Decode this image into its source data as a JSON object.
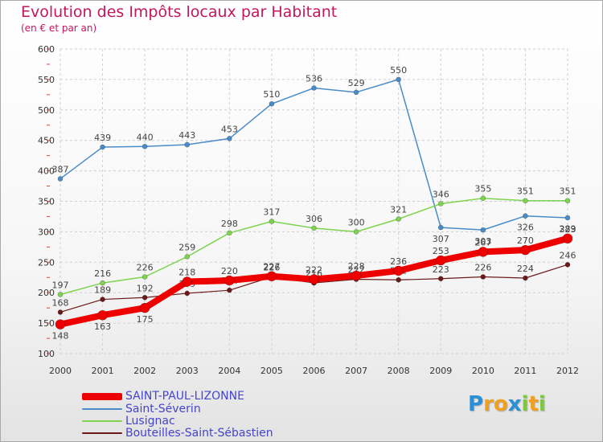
{
  "chart_data": {
    "type": "line",
    "title": "Evolution des Impôts locaux par Habitant",
    "subtitle": "(en € et par an)",
    "xlabel": "",
    "ylabel": "",
    "ylim": [
      100,
      600
    ],
    "yticks": [
      100,
      150,
      200,
      250,
      300,
      350,
      400,
      450,
      500,
      550,
      600
    ],
    "x": [
      2000,
      2001,
      2002,
      2003,
      2004,
      2005,
      2006,
      2007,
      2008,
      2009,
      2010,
      2011,
      2012
    ],
    "grid": true,
    "legend_position": "bottom-left",
    "series": [
      {
        "name": "Saint-Séverin",
        "color": "#4a8cc8",
        "values": [
          387,
          439,
          440,
          443,
          453,
          510,
          536,
          529,
          550,
          307,
          303,
          326,
          323
        ]
      },
      {
        "name": "Lusignac",
        "color": "#7ed34f",
        "values": [
          197,
          216,
          226,
          259,
          298,
          317,
          306,
          300,
          321,
          346,
          355,
          351,
          351
        ]
      },
      {
        "name": "Bouteilles-Saint-Sébastien",
        "color": "#6b1a1a",
        "values": [
          168,
          189,
          192,
          199,
          204,
          226,
          216,
          222,
          221,
          223,
          226,
          224,
          246
        ]
      },
      {
        "name": "SAINT-PAUL-LIZONNE",
        "color": "#ee0000",
        "values": [
          148,
          163,
          175,
          218,
          220,
          227,
          222,
          228,
          236,
          253,
          267,
          270,
          289
        ]
      }
    ]
  },
  "legend": {
    "items": [
      {
        "name": "SAINT-PAUL-LIZONNE",
        "color": "#ee0000"
      },
      {
        "name": "Saint-Séverin",
        "color": "#4a8cc8"
      },
      {
        "name": "Lusignac",
        "color": "#7ed34f"
      },
      {
        "name": "Bouteilles-Saint-Sébastien",
        "color": "#6b1a1a"
      }
    ]
  },
  "logo": {
    "text": "Proxiti",
    "letters": [
      "P",
      "r",
      "o",
      "x",
      "i",
      "t",
      "i"
    ],
    "colors": [
      "#2a8fd6",
      "#f0a020",
      "#f0a020",
      "#2a8fd6",
      "#7ec840",
      "#f0a020",
      "#7ec840"
    ]
  }
}
